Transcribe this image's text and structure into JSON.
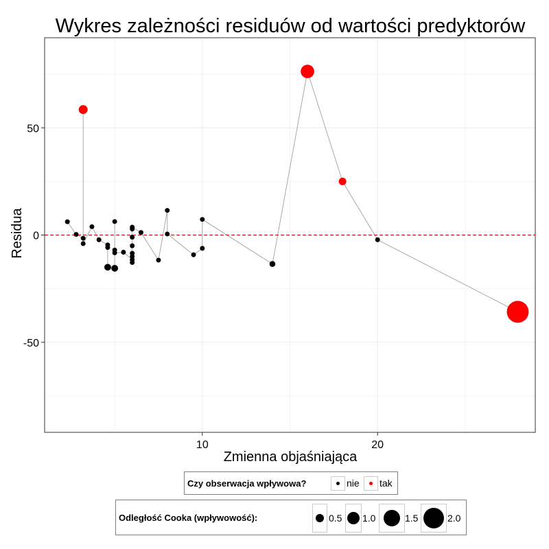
{
  "chart_data": {
    "type": "scatter",
    "title": "Wykres zależności residuów od wartości predyktorów",
    "xlabel": "Zmienna objaśniająca",
    "ylabel": "Residua",
    "xlim": [
      1.0,
      29.0
    ],
    "ylim": [
      -92,
      92
    ],
    "xticks": [
      10,
      20
    ],
    "xtick_labels": [
      "10",
      "20"
    ],
    "yticks": [
      -50,
      0,
      50
    ],
    "ytick_labels": [
      "-50",
      "0",
      "50"
    ],
    "grid": true,
    "reference_line": {
      "y": 0,
      "style": "dashed",
      "color": "#cc0000"
    },
    "connect_points": true,
    "points": [
      {
        "x": 2.3,
        "y": 6.2,
        "cook": 0.1,
        "influential": "nie"
      },
      {
        "x": 2.8,
        "y": 0.3,
        "cook": 0.1,
        "influential": "nie"
      },
      {
        "x": 3.2,
        "y": -1.5,
        "cook": 0.1,
        "influential": "nie"
      },
      {
        "x": 3.2,
        "y": 58.5,
        "cook": 0.35,
        "influential": "tak"
      },
      {
        "x": 3.2,
        "y": -4.0,
        "cook": 0.1,
        "influential": "nie"
      },
      {
        "x": 3.7,
        "y": 3.9,
        "cook": 0.1,
        "influential": "nie"
      },
      {
        "x": 4.1,
        "y": -2.2,
        "cook": 0.1,
        "influential": "nie"
      },
      {
        "x": 4.6,
        "y": -4.6,
        "cook": 0.1,
        "influential": "nie"
      },
      {
        "x": 4.6,
        "y": -5.8,
        "cook": 0.1,
        "influential": "nie"
      },
      {
        "x": 4.6,
        "y": -15.0,
        "cook": 0.2,
        "influential": "nie"
      },
      {
        "x": 5.0,
        "y": -15.5,
        "cook": 0.2,
        "influential": "nie"
      },
      {
        "x": 5.0,
        "y": -7.0,
        "cook": 0.1,
        "influential": "nie"
      },
      {
        "x": 5.0,
        "y": 6.3,
        "cook": 0.1,
        "influential": "nie"
      },
      {
        "x": 5.0,
        "y": -8.3,
        "cook": 0.1,
        "influential": "nie"
      },
      {
        "x": 5.5,
        "y": -8.0,
        "cook": 0.1,
        "influential": "nie"
      },
      {
        "x": 6.0,
        "y": -11.5,
        "cook": 0.1,
        "influential": "nie"
      },
      {
        "x": 6.0,
        "y": -12.8,
        "cook": 0.1,
        "influential": "nie"
      },
      {
        "x": 6.0,
        "y": -10.0,
        "cook": 0.1,
        "influential": "nie"
      },
      {
        "x": 6.0,
        "y": -8.5,
        "cook": 0.1,
        "influential": "nie"
      },
      {
        "x": 6.0,
        "y": -5.0,
        "cook": 0.1,
        "influential": "nie"
      },
      {
        "x": 6.0,
        "y": -1.0,
        "cook": 0.1,
        "influential": "nie"
      },
      {
        "x": 6.0,
        "y": 2.8,
        "cook": 0.1,
        "influential": "nie"
      },
      {
        "x": 6.0,
        "y": 3.7,
        "cook": 0.1,
        "influential": "nie"
      },
      {
        "x": 6.5,
        "y": 1.2,
        "cook": 0.1,
        "influential": "nie"
      },
      {
        "x": 7.5,
        "y": -11.7,
        "cook": 0.1,
        "influential": "nie"
      },
      {
        "x": 8.0,
        "y": 11.5,
        "cook": 0.1,
        "influential": "nie"
      },
      {
        "x": 8.0,
        "y": 0.5,
        "cook": 0.1,
        "influential": "nie"
      },
      {
        "x": 9.5,
        "y": -9.2,
        "cook": 0.1,
        "influential": "nie"
      },
      {
        "x": 10.0,
        "y": -6.2,
        "cook": 0.1,
        "influential": "nie"
      },
      {
        "x": 10.0,
        "y": 7.3,
        "cook": 0.1,
        "influential": "nie"
      },
      {
        "x": 14.0,
        "y": -13.5,
        "cook": 0.15,
        "influential": "nie"
      },
      {
        "x": 16.0,
        "y": 76.3,
        "cook": 0.8,
        "influential": "tak"
      },
      {
        "x": 18.0,
        "y": 25.0,
        "cook": 0.25,
        "influential": "tak"
      },
      {
        "x": 20.0,
        "y": -2.2,
        "cook": 0.1,
        "influential": "nie"
      },
      {
        "x": 28.0,
        "y": -35.8,
        "cook": 2.1,
        "influential": "tak"
      }
    ],
    "colors": {
      "nie": "#000000",
      "tak": "#ff0000",
      "path": "#a0a0a0",
      "grid": "#ebebeb",
      "frame": "#333333"
    },
    "legend_color": {
      "title": "Czy obserwacja wpływowa?",
      "items": [
        {
          "label": "nie",
          "color": "#000000"
        },
        {
          "label": "tak",
          "color": "#ff0000"
        }
      ],
      "position": "bottom"
    },
    "legend_size": {
      "title": "Odległość Cooka (wpływowość):",
      "items": [
        {
          "label": "0.5",
          "cook": 0.5
        },
        {
          "label": "1.0",
          "cook": 1.0
        },
        {
          "label": "1.5",
          "cook": 1.5
        },
        {
          "label": "2.0",
          "cook": 2.0
        }
      ],
      "position": "bottom"
    }
  }
}
